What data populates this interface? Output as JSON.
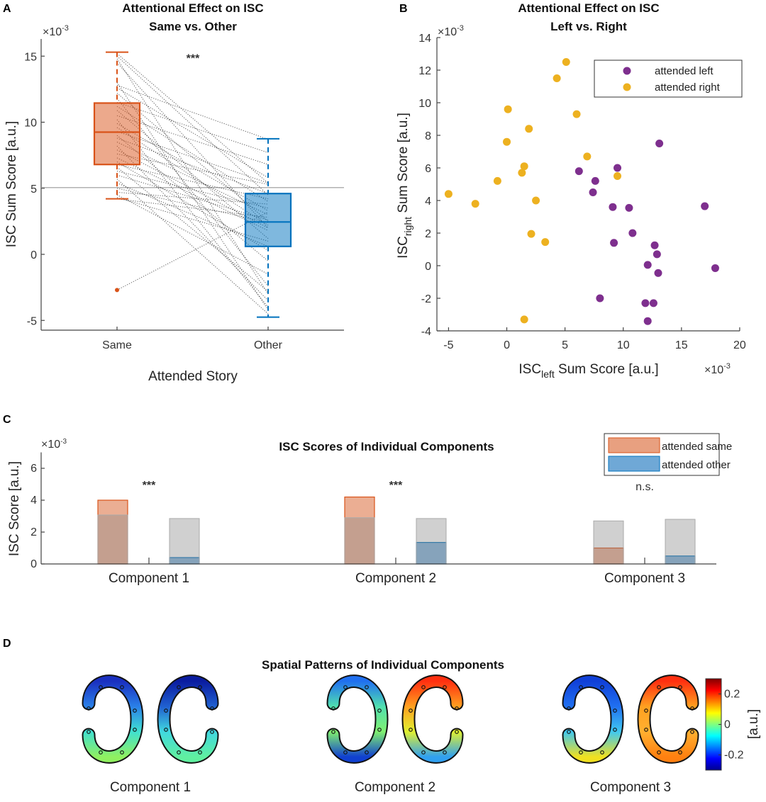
{
  "chart_data": [
    {
      "panel": "A",
      "type": "box",
      "title": [
        "Attentional Effect on ISC",
        "Same vs. Other"
      ],
      "xlabel": "Attended Story",
      "ylabel": "ISC Sum Score [a.u.]",
      "y_multiplier": "×10",
      "y_exponent": "-3",
      "categories": [
        "Same",
        "Other"
      ],
      "ylim": [
        -5.7,
        16.3
      ],
      "yticks": [
        -5,
        0,
        5,
        10,
        15
      ],
      "reference_line": 5.05,
      "significance": "***",
      "colors": {
        "Same": "#d95319",
        "Other": "#0072bd"
      },
      "boxes": [
        {
          "name": "Same",
          "whisker_low": 4.2,
          "q1": 6.8,
          "median": 9.25,
          "q3": 11.45,
          "whisker_high": 15.3,
          "outliers": [
            -2.7
          ]
        },
        {
          "name": "Other",
          "whisker_low": -4.75,
          "q1": 0.6,
          "median": 2.45,
          "q3": 4.6,
          "whisker_high": 8.75,
          "outliers": []
        }
      ],
      "pairs": [
        [
          15.2,
          5.4
        ],
        [
          15.0,
          4.5
        ],
        [
          14.8,
          -3.0
        ],
        [
          14.5,
          2.0
        ],
        [
          13.0,
          -4.2
        ],
        [
          12.8,
          8.7
        ],
        [
          12.6,
          5.8
        ],
        [
          12.2,
          2.5
        ],
        [
          11.8,
          -2.4
        ],
        [
          11.5,
          7.7
        ],
        [
          11.2,
          4.0
        ],
        [
          10.9,
          1.2
        ],
        [
          10.5,
          6.8
        ],
        [
          10.2,
          -4.0
        ],
        [
          9.9,
          3.3
        ],
        [
          9.6,
          2.2
        ],
        [
          9.3,
          5.4
        ],
        [
          9.0,
          -0.5
        ],
        [
          8.8,
          4.6
        ],
        [
          8.5,
          3.0
        ],
        [
          8.2,
          -3.5
        ],
        [
          7.9,
          2.0
        ],
        [
          7.6,
          5.3
        ],
        [
          7.3,
          1.8
        ],
        [
          7.0,
          0.3
        ],
        [
          6.8,
          4.2
        ],
        [
          6.6,
          -2.8
        ],
        [
          6.3,
          3.5
        ],
        [
          6.0,
          2.6
        ],
        [
          5.7,
          -4.5
        ],
        [
          5.4,
          0.6
        ],
        [
          5.0,
          2.4
        ],
        [
          4.7,
          3.8
        ],
        [
          4.5,
          -1.5
        ],
        [
          4.3,
          1.0
        ],
        [
          4.2,
          2.8
        ],
        [
          -2.7,
          3.2
        ]
      ]
    },
    {
      "panel": "B",
      "type": "scatter",
      "title": [
        "Attentional Effect on ISC",
        "Left vs. Right"
      ],
      "xlabel": {
        "main": "ISC",
        "sub": "left",
        "rest": " Sum Score [a.u.]"
      },
      "ylabel": {
        "main": "ISC",
        "sub": "right",
        "rest": " Sum Score [a.u.]"
      },
      "x_multiplier": "×10",
      "x_exponent": "-3",
      "y_multiplier": "×10",
      "y_exponent": "-3",
      "xlim": [
        -6,
        20
      ],
      "ylim": [
        -4,
        14
      ],
      "xticks": [
        -5,
        0,
        5,
        10,
        15,
        20
      ],
      "yticks": [
        -4,
        -2,
        0,
        2,
        4,
        6,
        8,
        10,
        12,
        14
      ],
      "legend_position": "top-right",
      "series": [
        {
          "name": "attended left",
          "color": "#7e2f8e",
          "points": [
            [
              13.1,
              7.5
            ],
            [
              6.2,
              5.8
            ],
            [
              9.5,
              6.0
            ],
            [
              7.6,
              5.2
            ],
            [
              7.4,
              4.5
            ],
            [
              9.1,
              3.6
            ],
            [
              10.5,
              3.55
            ],
            [
              17.0,
              3.65
            ],
            [
              10.8,
              2.0
            ],
            [
              9.2,
              1.4
            ],
            [
              12.7,
              1.25
            ],
            [
              12.9,
              0.7
            ],
            [
              12.1,
              0.05
            ],
            [
              13.0,
              -0.45
            ],
            [
              17.9,
              -0.15
            ],
            [
              8.0,
              -2.0
            ],
            [
              11.9,
              -2.3
            ],
            [
              12.6,
              -2.3
            ],
            [
              12.1,
              -3.4
            ]
          ]
        },
        {
          "name": "attended right",
          "color": "#edb120",
          "points": [
            [
              5.1,
              12.5
            ],
            [
              4.3,
              11.5
            ],
            [
              0.1,
              9.6
            ],
            [
              6.0,
              9.3
            ],
            [
              1.9,
              8.4
            ],
            [
              0.0,
              7.6
            ],
            [
              6.9,
              6.7
            ],
            [
              1.5,
              6.1
            ],
            [
              1.3,
              5.7
            ],
            [
              -0.8,
              5.2
            ],
            [
              9.5,
              5.5
            ],
            [
              -5.0,
              4.4
            ],
            [
              -2.7,
              3.8
            ],
            [
              2.5,
              4.0
            ],
            [
              2.1,
              1.95
            ],
            [
              3.3,
              1.45
            ],
            [
              1.5,
              -3.3
            ]
          ]
        }
      ]
    },
    {
      "panel": "C",
      "type": "bar",
      "title": "ISC Scores of Individual Components",
      "ylabel": "ISC Score [a.u.]",
      "y_multiplier": "×10",
      "y_exponent": "-3",
      "ylim": [
        0,
        7
      ],
      "yticks": [
        0,
        2,
        4,
        6
      ],
      "categories": [
        "Component 1",
        "Component 2",
        "Component 3"
      ],
      "legend_position": "top-right",
      "series": [
        {
          "name": "attended same",
          "color": "#e8a080",
          "edge": "#d95319",
          "values": [
            4.0,
            4.2,
            1.0
          ]
        },
        {
          "name": "attended other",
          "color": "#6fa8d6",
          "edge": "#0072bd",
          "values": [
            0.4,
            1.35,
            0.5
          ]
        }
      ],
      "chance_levels": {
        "same": [
          3.07,
          2.9,
          2.7
        ],
        "other": [
          2.85,
          2.85,
          2.8
        ]
      },
      "significance": [
        "***",
        "***",
        "n.s."
      ]
    },
    {
      "panel": "D",
      "type": "heatmap",
      "title": "Spatial Patterns of Individual Components",
      "colorbar": {
        "label": "[a.u.]",
        "ticks": [
          -0.2,
          0,
          0.2
        ],
        "tick_labels": [
          "-0.2",
          "0",
          "0.2"
        ],
        "range": [
          -0.3,
          0.3
        ]
      },
      "components": [
        {
          "name": "Component 1",
          "left": [
            "#1a30c0",
            "#2a80e8",
            "#40e0d0",
            "#90f060"
          ],
          "right": [
            "#0a1ca0",
            "#2060d0",
            "#40d8e0",
            "#60f0a0"
          ]
        },
        {
          "name": "Component 2",
          "left": [
            "#2070f0",
            "#50e0b0",
            "#80f070",
            "#1040d0"
          ],
          "right": [
            "#ff3010",
            "#ffa020",
            "#e0f030",
            "#30a0f0"
          ]
        },
        {
          "name": "Component 3",
          "left": [
            "#1040d8",
            "#2070f0",
            "#40c8f0",
            "#f0e020"
          ],
          "right": [
            "#ff3010",
            "#ffa020",
            "#ffb030",
            "#ff8010"
          ]
        }
      ]
    }
  ]
}
